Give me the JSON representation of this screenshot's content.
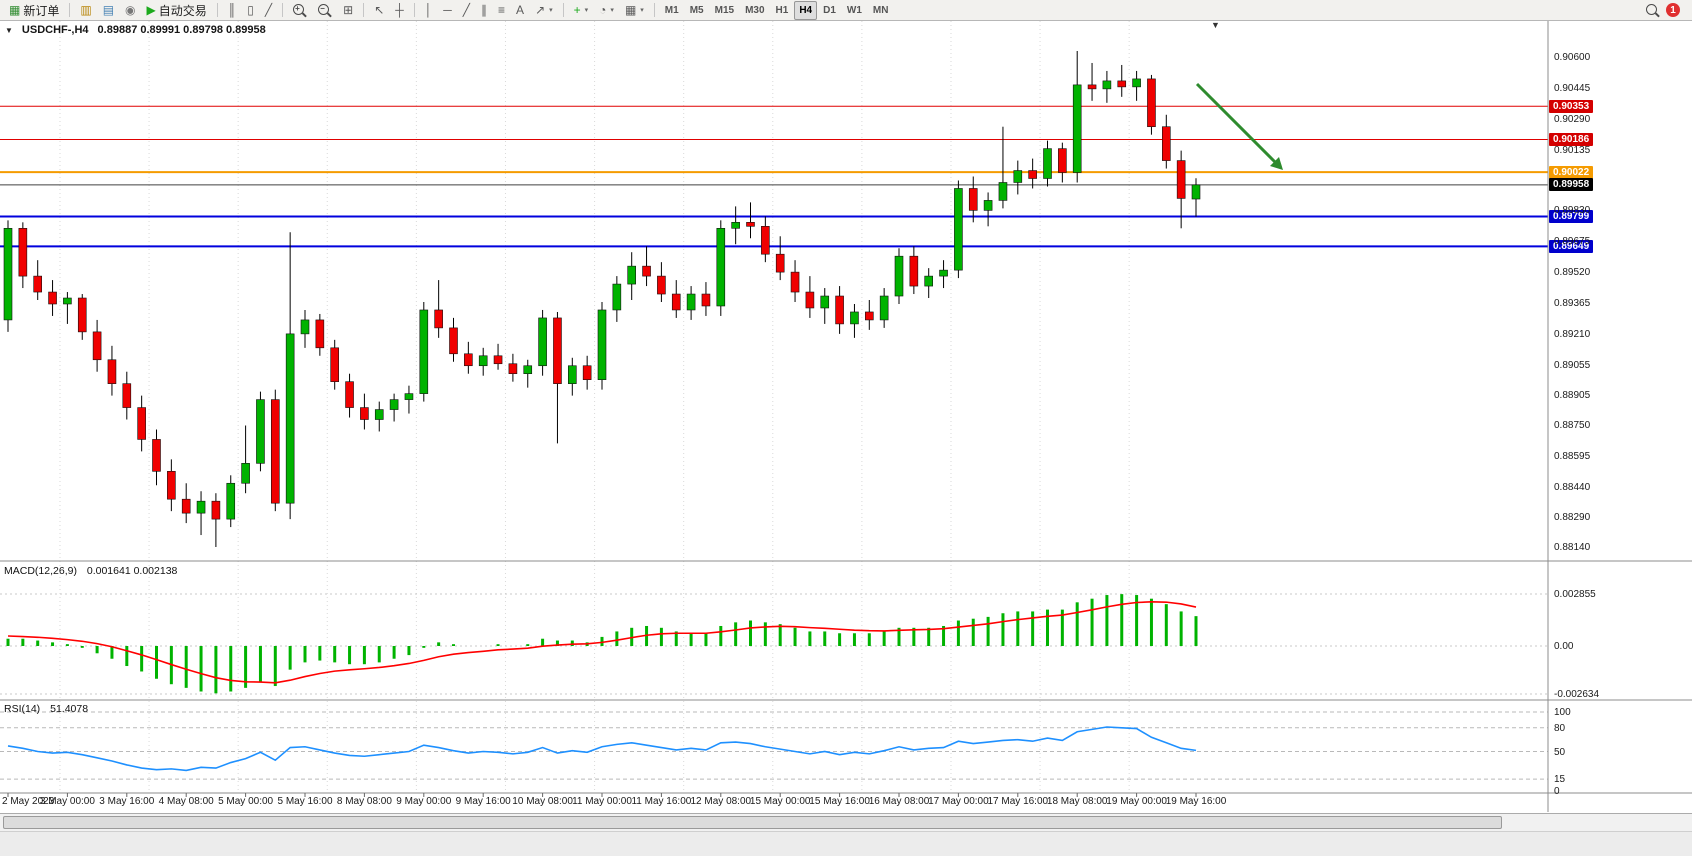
{
  "window": {
    "title": "USDCHF-,H4"
  },
  "colors": {
    "bull": "#00b300",
    "bear": "#f00000",
    "wick": "#000000",
    "macd_hist": "#00b300",
    "macd_signal": "#ff0000",
    "rsi_line": "#1e90ff",
    "grid": "#d9d9d9",
    "arrow": "#2e8b2e",
    "resistance": "#e00000",
    "pivot": "#f59b00",
    "support": "#0000dd",
    "bid": "#000000"
  },
  "icons": {
    "collapse_triangle": "▼",
    "shift_marker": "▼"
  },
  "toolbar": {
    "items": [
      {
        "type": "button",
        "name": "new-order-button",
        "icon": "new-order-icon",
        "glyph": "▦",
        "glyphColor": "#2e8b2e",
        "label": "新订单"
      },
      {
        "type": "sep"
      },
      {
        "type": "icon",
        "name": "charts-button",
        "icon": "charts-icon",
        "glyph": "▥",
        "glyphColor": "#b8860b"
      },
      {
        "type": "icon",
        "name": "profiles-button",
        "icon": "profiles-icon",
        "glyph": "▤",
        "glyphColor": "#4682b4"
      },
      {
        "type": "icon",
        "name": "metaeditor-button",
        "icon": "metaeditor-icon",
        "glyph": "◉",
        "glyphColor": "#777777"
      },
      {
        "type": "button",
        "name": "auto-trading-button",
        "icon": "play-icon",
        "glyph": "▶",
        "glyphColor": "#1daa1d",
        "label": "自动交易"
      },
      {
        "type": "sep"
      },
      {
        "type": "icon",
        "name": "bar-chart-button",
        "icon": "bar-chart-icon",
        "glyph": "║"
      },
      {
        "type": "icon",
        "name": "candlestick-chart-button",
        "icon": "candlestick-icon",
        "glyph": "▯"
      },
      {
        "type": "icon",
        "name": "line-chart-button",
        "icon": "line-chart-icon",
        "glyph": "╱"
      },
      {
        "type": "sep"
      },
      {
        "type": "icon",
        "name": "zoom-in-button",
        "icon": "zoom-in-icon",
        "css": "mag",
        "sub": "+"
      },
      {
        "type": "icon",
        "name": "zoom-out-button",
        "icon": "zoom-out-icon",
        "css": "mag",
        "sub": "−"
      },
      {
        "type": "icon",
        "name": "tile-windows-button",
        "icon": "tile-windows-icon",
        "glyph": "⊞"
      },
      {
        "type": "sep"
      },
      {
        "type": "icon",
        "name": "cursor-button",
        "icon": "cursor-icon",
        "glyph": "↖"
      },
      {
        "type": "icon",
        "name": "crosshair-button",
        "icon": "crosshair-icon",
        "glyph": "┼"
      },
      {
        "type": "sep"
      },
      {
        "type": "icon",
        "name": "vertical-line-button",
        "icon": "vertical-line-icon",
        "glyph": "│"
      },
      {
        "type": "icon",
        "name": "horizontal-line-button",
        "icon": "horizontal-line-icon",
        "glyph": "─"
      },
      {
        "type": "icon",
        "name": "trendline-button",
        "icon": "trendline-icon",
        "glyph": "╱"
      },
      {
        "type": "icon",
        "name": "channel-button",
        "icon": "equidistant-channel-icon",
        "glyph": "∥"
      },
      {
        "type": "icon",
        "name": "fibonacci-button",
        "icon": "fibonacci-icon",
        "glyph": "≡"
      },
      {
        "type": "icon",
        "name": "text-button",
        "icon": "text-icon",
        "glyph": "A"
      },
      {
        "type": "icon",
        "name": "arrows-button",
        "icon": "arrow-icon",
        "glyph": "↗",
        "caret": true
      },
      {
        "type": "sep"
      },
      {
        "type": "icon",
        "name": "indicators-button",
        "icon": "indicators-icon",
        "glyph": "+",
        "glyphColor": "#1daa1d",
        "caret": true
      },
      {
        "type": "icon",
        "name": "periods-button",
        "icon": "clock-icon",
        "glyph": "◔",
        "caret": true
      },
      {
        "type": "icon",
        "name": "templates-button",
        "icon": "template-icon",
        "glyph": "▦",
        "caret": true
      },
      {
        "type": "sep"
      },
      {
        "type": "tf",
        "name": "timeframe-m1",
        "label": "M1"
      },
      {
        "type": "tf",
        "name": "timeframe-m5",
        "label": "M5"
      },
      {
        "type": "tf",
        "name": "timeframe-m15",
        "label": "M15"
      },
      {
        "type": "tf",
        "name": "timeframe-m30",
        "label": "M30"
      },
      {
        "type": "tf",
        "name": "timeframe-h1",
        "label": "H1"
      },
      {
        "type": "tf",
        "name": "timeframe-h4",
        "label": "H4",
        "active": true
      },
      {
        "type": "tf",
        "name": "timeframe-d1",
        "label": "D1"
      },
      {
        "type": "tf",
        "name": "timeframe-w1",
        "label": "W1"
      },
      {
        "type": "tf",
        "name": "timeframe-mn",
        "label": "MN"
      },
      {
        "type": "spacer"
      },
      {
        "type": "icon",
        "name": "search-button",
        "icon": "search-icon",
        "css": "mag",
        "sub": ""
      },
      {
        "type": "badge",
        "name": "notification-badge",
        "label": "1"
      }
    ]
  },
  "chart_data": {
    "type": "candlestick",
    "symbol": "USDCHF-,H4",
    "timeframe": "H4",
    "ohlc_label": "0.89887 0.89991 0.89798 0.89958",
    "main_axis_labels": [
      "0.90600",
      "0.90445",
      "0.90290",
      "0.90135",
      "0.89830",
      "0.89675",
      "0.89520",
      "0.89365",
      "0.89210",
      "0.89055",
      "0.88905",
      "0.88750",
      "0.88595",
      "0.88440",
      "0.88290",
      "0.88140"
    ],
    "x_labels": [
      "2 May 2023",
      "3 May 00:00",
      "3 May 16:00",
      "4 May 08:00",
      "5 May 00:00",
      "5 May 16:00",
      "8 May 08:00",
      "9 May 00:00",
      "9 May 16:00",
      "10 May 08:00",
      "11 May 00:00",
      "11 May 16:00",
      "12 May 08:00",
      "15 May 00:00",
      "15 May 16:00",
      "16 May 08:00",
      "17 May 00:00",
      "17 May 16:00",
      "18 May 08:00",
      "19 May 00:00",
      "19 May 16:00"
    ],
    "x_label_step": 4,
    "day_separator_indices": [
      4,
      10,
      16,
      22,
      28,
      34,
      40,
      46,
      52,
      58,
      64,
      70,
      76
    ],
    "candles": [
      [
        0.8928,
        0.8978,
        0.8922,
        0.8974
      ],
      [
        0.8974,
        0.8977,
        0.8944,
        0.895
      ],
      [
        0.895,
        0.8958,
        0.8938,
        0.8942
      ],
      [
        0.8942,
        0.8948,
        0.893,
        0.8936
      ],
      [
        0.8936,
        0.8942,
        0.8926,
        0.8939
      ],
      [
        0.8939,
        0.8941,
        0.8918,
        0.8922
      ],
      [
        0.8922,
        0.8928,
        0.8902,
        0.8908
      ],
      [
        0.8908,
        0.8915,
        0.889,
        0.8896
      ],
      [
        0.8896,
        0.8902,
        0.8878,
        0.8884
      ],
      [
        0.8884,
        0.889,
        0.8862,
        0.8868
      ],
      [
        0.8868,
        0.8873,
        0.8845,
        0.8852
      ],
      [
        0.8852,
        0.8858,
        0.8832,
        0.8838
      ],
      [
        0.8838,
        0.8846,
        0.8826,
        0.8831
      ],
      [
        0.8831,
        0.8842,
        0.882,
        0.8837
      ],
      [
        0.8837,
        0.8841,
        0.8814,
        0.8828
      ],
      [
        0.8828,
        0.885,
        0.8824,
        0.8846
      ],
      [
        0.8846,
        0.8875,
        0.8841,
        0.8856
      ],
      [
        0.8856,
        0.8892,
        0.8852,
        0.8888
      ],
      [
        0.8888,
        0.8893,
        0.8832,
        0.8836
      ],
      [
        0.8836,
        0.8972,
        0.8828,
        0.8921
      ],
      [
        0.8921,
        0.8933,
        0.8914,
        0.8928
      ],
      [
        0.8928,
        0.8931,
        0.891,
        0.8914
      ],
      [
        0.8914,
        0.8918,
        0.8893,
        0.8897
      ],
      [
        0.8897,
        0.8901,
        0.8879,
        0.8884
      ],
      [
        0.8884,
        0.8891,
        0.8873,
        0.8878
      ],
      [
        0.8878,
        0.8887,
        0.8872,
        0.8883
      ],
      [
        0.8883,
        0.8891,
        0.8877,
        0.8888
      ],
      [
        0.8888,
        0.8895,
        0.8881,
        0.8891
      ],
      [
        0.8891,
        0.8937,
        0.8887,
        0.8933
      ],
      [
        0.8933,
        0.8948,
        0.8919,
        0.8924
      ],
      [
        0.8924,
        0.8929,
        0.8907,
        0.8911
      ],
      [
        0.8911,
        0.8917,
        0.8901,
        0.8905
      ],
      [
        0.8905,
        0.8914,
        0.89,
        0.891
      ],
      [
        0.891,
        0.8916,
        0.8903,
        0.8906
      ],
      [
        0.8906,
        0.8911,
        0.8897,
        0.8901
      ],
      [
        0.8901,
        0.8908,
        0.8894,
        0.8905
      ],
      [
        0.8905,
        0.8933,
        0.89,
        0.8929
      ],
      [
        0.8929,
        0.8932,
        0.8866,
        0.8896
      ],
      [
        0.8896,
        0.8909,
        0.889,
        0.8905
      ],
      [
        0.8905,
        0.891,
        0.8893,
        0.8898
      ],
      [
        0.8898,
        0.8937,
        0.8893,
        0.8933
      ],
      [
        0.8933,
        0.895,
        0.8927,
        0.8946
      ],
      [
        0.8946,
        0.8962,
        0.8938,
        0.8955
      ],
      [
        0.8955,
        0.8965,
        0.8945,
        0.895
      ],
      [
        0.895,
        0.8957,
        0.8937,
        0.8941
      ],
      [
        0.8941,
        0.8948,
        0.8929,
        0.8933
      ],
      [
        0.8933,
        0.8945,
        0.8928,
        0.8941
      ],
      [
        0.8941,
        0.8947,
        0.893,
        0.8935
      ],
      [
        0.8935,
        0.8978,
        0.893,
        0.8974
      ],
      [
        0.8974,
        0.8985,
        0.8966,
        0.8977
      ],
      [
        0.8977,
        0.8987,
        0.8969,
        0.8975
      ],
      [
        0.8975,
        0.898,
        0.8957,
        0.8961
      ],
      [
        0.8961,
        0.897,
        0.8948,
        0.8952
      ],
      [
        0.8952,
        0.8958,
        0.8937,
        0.8942
      ],
      [
        0.8942,
        0.895,
        0.8929,
        0.8934
      ],
      [
        0.8934,
        0.8944,
        0.8926,
        0.894
      ],
      [
        0.894,
        0.8945,
        0.8921,
        0.8926
      ],
      [
        0.8926,
        0.8936,
        0.8919,
        0.8932
      ],
      [
        0.8932,
        0.8938,
        0.8923,
        0.8928
      ],
      [
        0.8928,
        0.8944,
        0.8924,
        0.894
      ],
      [
        0.894,
        0.8964,
        0.8936,
        0.896
      ],
      [
        0.896,
        0.8965,
        0.8941,
        0.8945
      ],
      [
        0.8945,
        0.8954,
        0.8939,
        0.895
      ],
      [
        0.895,
        0.8958,
        0.8944,
        0.8953
      ],
      [
        0.8953,
        0.8998,
        0.8949,
        0.8994
      ],
      [
        0.8994,
        0.9,
        0.8977,
        0.8983
      ],
      [
        0.8983,
        0.8992,
        0.8975,
        0.8988
      ],
      [
        0.8988,
        0.9025,
        0.8984,
        0.8997
      ],
      [
        0.8997,
        0.9008,
        0.8991,
        0.9003
      ],
      [
        0.9003,
        0.9009,
        0.8994,
        0.8999
      ],
      [
        0.8999,
        0.9018,
        0.8995,
        0.9014
      ],
      [
        0.9014,
        0.9017,
        0.8997,
        0.9002
      ],
      [
        0.9002,
        0.9063,
        0.8997,
        0.9046
      ],
      [
        0.9046,
        0.9057,
        0.9038,
        0.9044
      ],
      [
        0.9044,
        0.9053,
        0.9037,
        0.9048
      ],
      [
        0.9048,
        0.9056,
        0.904,
        0.9045
      ],
      [
        0.9045,
        0.9053,
        0.9038,
        0.9049
      ],
      [
        0.9049,
        0.9051,
        0.9021,
        0.9025
      ],
      [
        0.9025,
        0.9031,
        0.9004,
        0.9008
      ],
      [
        0.9008,
        0.9013,
        0.8974,
        0.8989
      ],
      [
        0.89887,
        0.89991,
        0.89798,
        0.89958
      ]
    ],
    "hlines": [
      {
        "label": "0.90353",
        "value": 0.90353,
        "color": "#e00000",
        "width": 1,
        "badge_bg": "#d40000",
        "name": "resistance-line-1"
      },
      {
        "label": "0.90186",
        "value": 0.90186,
        "color": "#e00000",
        "width": 1,
        "badge_bg": "#d40000",
        "name": "resistance-line-2"
      },
      {
        "label": "0.90022",
        "value": 0.90022,
        "color": "#f59b00",
        "width": 2,
        "badge_bg": "#f59b00",
        "name": "pivot-line"
      },
      {
        "label": "0.89958",
        "value": 0.89958,
        "color": "#404040",
        "width": 1,
        "badge_bg": "#000000",
        "name": "bid-price-line"
      },
      {
        "label": "0.89799",
        "value": 0.89799,
        "color": "#0000dd",
        "width": 2,
        "badge_bg": "#0000cc",
        "name": "support-line-1"
      },
      {
        "label": "0.89649",
        "value": 0.89649,
        "color": "#0000dd",
        "width": 2,
        "badge_bg": "#0000cc",
        "name": "support-line-2"
      }
    ],
    "arrow": {
      "from": [
        1197,
        84
      ],
      "to": [
        1283,
        170
      ],
      "color": "#2e8b2e"
    },
    "macd": {
      "label": "MACD(12,26,9)",
      "values_label": "0.001641 0.002138",
      "axis_labels": [
        "0.002855",
        "0.00",
        "-0.002634"
      ],
      "axis_values": [
        0.002855,
        0,
        -0.002634
      ],
      "histogram": [
        0.0004,
        0.0004,
        0.0003,
        0.0002,
        0.0001,
        -0.0001,
        -0.0004,
        -0.0007,
        -0.0011,
        -0.0014,
        -0.0018,
        -0.0021,
        -0.0023,
        -0.0025,
        -0.0026,
        -0.0025,
        -0.0023,
        -0.002,
        -0.0022,
        -0.0013,
        -0.0009,
        -0.0008,
        -0.0009,
        -0.001,
        -0.001,
        -0.0009,
        -0.0007,
        -0.0005,
        -0.0001,
        0.0002,
        0.0001,
        0,
        0,
        0.0001,
        0,
        0.0001,
        0.0004,
        0.0003,
        0.0003,
        0.0002,
        0.0005,
        0.0008,
        0.001,
        0.0011,
        0.001,
        0.0008,
        0.0007,
        0.0007,
        0.0011,
        0.0013,
        0.0014,
        0.0013,
        0.0012,
        0.001,
        0.0008,
        0.0008,
        0.0007,
        0.0007,
        0.0007,
        0.0008,
        0.001,
        0.001,
        0.001,
        0.0011,
        0.0014,
        0.0015,
        0.0016,
        0.0018,
        0.0019,
        0.0019,
        0.002,
        0.002,
        0.0024,
        0.0026,
        0.0028,
        0.00285,
        0.0028,
        0.0026,
        0.0023,
        0.0019,
        0.001641
      ],
      "signal": [
        0.00055,
        0.00052,
        0.00048,
        0.00042,
        0.00035,
        0.00026,
        0.00013,
        -4e-05,
        -0.00026,
        -0.00049,
        -0.00075,
        -0.00102,
        -0.00128,
        -0.00152,
        -0.00174,
        -0.00189,
        -0.00197,
        -0.00198,
        -0.00202,
        -0.00188,
        -0.00168,
        -0.00151,
        -0.00138,
        -0.00131,
        -0.00125,
        -0.00118,
        -0.00108,
        -0.00096,
        -0.00079,
        -0.00059,
        -0.00045,
        -0.00036,
        -0.00029,
        -0.00021,
        -0.00017,
        -0.00012,
        -1e-05,
        5e-05,
        0.0001,
        0.00012,
        0.0002,
        0.00032,
        0.00046,
        0.00059,
        0.00067,
        0.0007,
        0.0007,
        0.0007,
        0.00078,
        0.00088,
        0.00099,
        0.00105,
        0.00108,
        0.00106,
        0.00101,
        0.00097,
        0.00092,
        0.00087,
        0.00084,
        0.00083,
        0.00086,
        0.00089,
        0.00091,
        0.00095,
        0.00104,
        0.00113,
        0.00122,
        0.00134,
        0.00145,
        0.00154,
        0.00163,
        0.0017,
        0.00184,
        0.00199,
        0.00215,
        0.00229,
        0.00239,
        0.00243,
        0.00241,
        0.00231,
        0.002138
      ]
    },
    "rsi": {
      "label": "RSI(14)",
      "value_label": "51.4078",
      "axis_labels": [
        "100",
        "80",
        "50",
        "15",
        "0"
      ],
      "axis_values": [
        100,
        80,
        50,
        15,
        0
      ],
      "levels": [
        100,
        80,
        50,
        15
      ],
      "values": [
        57,
        54,
        50,
        48,
        49,
        46,
        42,
        38,
        33,
        29,
        27,
        28,
        26,
        30,
        29,
        36,
        41,
        49,
        39,
        55,
        56,
        52,
        48,
        45,
        44,
        46,
        48,
        50,
        58,
        55,
        51,
        48,
        50,
        49,
        47,
        49,
        55,
        48,
        51,
        49,
        56,
        59,
        61,
        58,
        55,
        52,
        54,
        52,
        61,
        62,
        60,
        56,
        53,
        50,
        47,
        50,
        46,
        49,
        47,
        51,
        56,
        52,
        54,
        55,
        63,
        60,
        62,
        64,
        65,
        63,
        67,
        64,
        75,
        78,
        81,
        80,
        79,
        68,
        61,
        54,
        51.41
      ]
    }
  }
}
